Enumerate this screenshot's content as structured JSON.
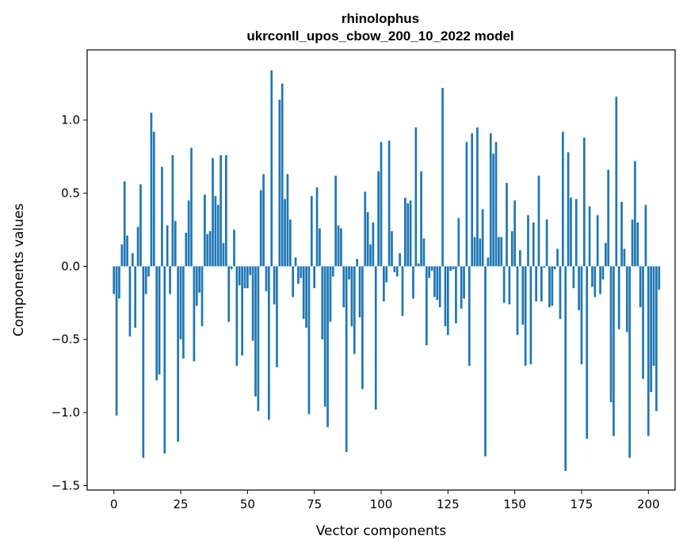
{
  "chart_data": {
    "type": "bar",
    "title": "rhinolophus",
    "subtitle": "ukrconll_upos_cbow_200_10_2022 model",
    "xlabel": "Vector components",
    "ylabel": "Components values",
    "xlim": [
      -10,
      210
    ],
    "ylim": [
      -1.53,
      1.48
    ],
    "x_ticks": [
      0,
      25,
      50,
      75,
      100,
      125,
      150,
      175,
      200
    ],
    "x_tick_labels": [
      "0",
      "25",
      "50",
      "75",
      "100",
      "125",
      "150",
      "175",
      "200"
    ],
    "y_ticks": [
      -1.5,
      -1.0,
      -0.5,
      0.0,
      0.5,
      1.0
    ],
    "y_tick_labels": [
      "−1.5",
      "−1.0",
      "−0.5",
      "0.0",
      "0.5",
      "1.0"
    ],
    "grid": false,
    "bar_color": "#1f77b4",
    "values": [
      -0.19,
      -1.02,
      -0.22,
      0.15,
      0.58,
      0.21,
      -0.48,
      0.09,
      -0.42,
      0.27,
      0.56,
      -1.31,
      -0.19,
      -0.07,
      1.05,
      0.92,
      -0.78,
      -0.74,
      0.68,
      -1.28,
      0.28,
      -0.19,
      0.76,
      0.31,
      -1.2,
      -0.5,
      -0.63,
      0.23,
      0.45,
      0.81,
      -0.65,
      -0.27,
      -0.18,
      -0.41,
      0.49,
      0.22,
      0.24,
      0.74,
      0.48,
      0.42,
      0.76,
      0.16,
      0.76,
      -0.38,
      -0.02,
      0.25,
      -0.68,
      -0.13,
      -0.61,
      -0.15,
      -0.15,
      -0.06,
      -0.51,
      -0.89,
      -0.99,
      0.52,
      0.63,
      -0.17,
      -1.05,
      1.34,
      -0.26,
      -0.69,
      1.14,
      1.25,
      0.46,
      0.63,
      0.32,
      -0.21,
      0.06,
      -0.12,
      -0.08,
      -0.36,
      -0.42,
      -1.01,
      0.48,
      -0.15,
      0.54,
      0.26,
      -0.5,
      -0.96,
      -1.1,
      -0.38,
      -0.07,
      0.62,
      0.28,
      0.26,
      -0.28,
      -1.27,
      -0.09,
      -0.41,
      -0.6,
      0.05,
      -0.35,
      -0.84,
      0.51,
      0.37,
      0.15,
      0.3,
      -0.98,
      0.65,
      0.85,
      -0.24,
      -0.11,
      0.86,
      0.24,
      -0.04,
      -0.07,
      0.09,
      -0.34,
      0.47,
      0.43,
      0.45,
      -0.22,
      0.95,
      0.02,
      0.65,
      0.19,
      -0.54,
      -0.08,
      -0.03,
      -0.21,
      -0.23,
      -0.28,
      1.22,
      -0.41,
      -0.47,
      -0.03,
      -0.02,
      -0.39,
      0.33,
      -0.29,
      -0.22,
      0.85,
      -0.68,
      0.91,
      0.2,
      0.95,
      0.19,
      0.39,
      -1.3,
      0.06,
      0.91,
      0.77,
      0.85,
      0.2,
      0.2,
      -0.25,
      0.57,
      -0.26,
      0.24,
      0.45,
      -0.47,
      0.11,
      -0.4,
      -0.68,
      0.35,
      -0.67,
      0.3,
      -0.24,
      0.62,
      -0.24,
      -0.01,
      0.32,
      -0.28,
      -0.27,
      -0.02,
      0.12,
      -0.36,
      0.92,
      -1.4,
      0.78,
      0.47,
      -0.15,
      0.46,
      -0.3,
      -0.67,
      0.88,
      -1.18,
      0.41,
      -0.14,
      -0.21,
      0.35,
      -0.19,
      -0.09,
      0.16,
      0.66,
      -0.93,
      -1.16,
      1.16,
      -0.43,
      0.44,
      0.12,
      -0.45,
      -1.31,
      0.32,
      0.72,
      0.3,
      -0.28,
      -0.77,
      0.42,
      -1.16,
      -0.86,
      -0.68,
      -0.99,
      -0.16
    ]
  }
}
